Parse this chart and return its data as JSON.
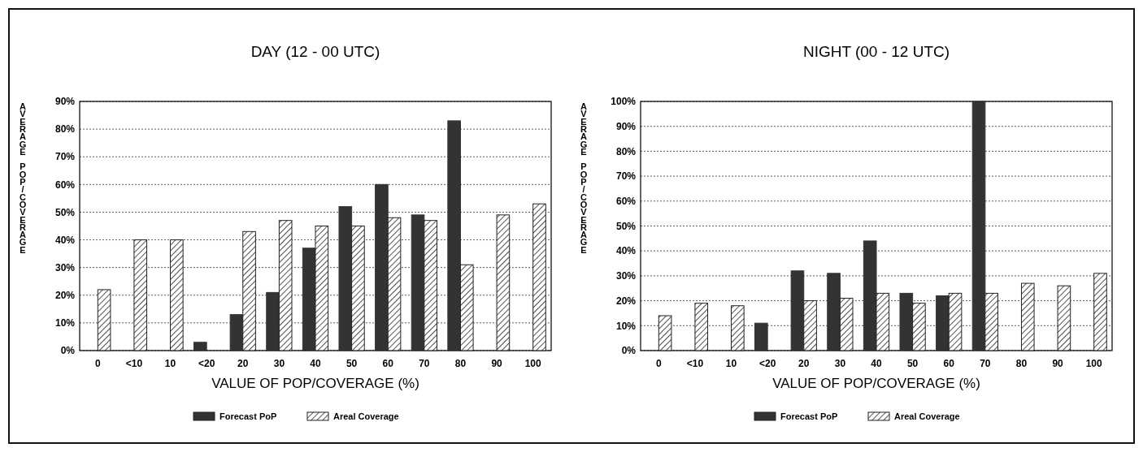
{
  "chart_data": [
    {
      "type": "bar",
      "title": "DAY (12 - 00 UTC)",
      "xlabel": "VALUE OF POP/COVERAGE (%)",
      "ylabel": "AVERAGE POP/COVERAGE",
      "categories": [
        "0",
        "<10",
        "10",
        "<20",
        "20",
        "30",
        "40",
        "50",
        "60",
        "70",
        "80",
        "90",
        "100"
      ],
      "series": [
        {
          "name": "Forecast PoP",
          "color": "#333333",
          "values": [
            null,
            null,
            null,
            3,
            13,
            21,
            37,
            52,
            60,
            49,
            83,
            null,
            null
          ]
        },
        {
          "name": "Areal Coverage",
          "color": "#222222",
          "values": [
            22,
            40,
            40,
            null,
            43,
            47,
            45,
            45,
            48,
            47,
            31,
            49,
            53
          ]
        }
      ],
      "ylim": [
        0,
        90
      ],
      "yticks": [
        {
          "value": 0,
          "label": "0%"
        },
        {
          "value": 10,
          "label": "10%"
        },
        {
          "value": 20,
          "label": "20%"
        },
        {
          "value": 30,
          "label": "30%"
        },
        {
          "value": 40,
          "label": "40%"
        },
        {
          "value": 50,
          "label": "50%"
        },
        {
          "value": 60,
          "label": "60%"
        },
        {
          "value": 70,
          "label": "70%"
        },
        {
          "value": 80,
          "label": "80%"
        },
        {
          "value": 90,
          "label": "90%"
        }
      ],
      "grid": "y",
      "legend": "bottom"
    },
    {
      "type": "bar",
      "title": "NIGHT (00 - 12 UTC)",
      "xlabel": "VALUE OF POP/COVERAGE (%)",
      "ylabel": "AVERAGE POP/COVERAGE",
      "categories": [
        "0",
        "<10",
        "10",
        "<20",
        "20",
        "30",
        "40",
        "50",
        "60",
        "70",
        "80",
        "90",
        "100"
      ],
      "series": [
        {
          "name": "Forecast PoP",
          "color": "#333333",
          "values": [
            null,
            null,
            null,
            11,
            32,
            31,
            44,
            23,
            22,
            100,
            null,
            null,
            null
          ]
        },
        {
          "name": "Areal Coverage",
          "color": "#222222",
          "values": [
            14,
            19,
            18,
            null,
            20,
            21,
            23,
            19,
            23,
            23,
            27,
            26,
            31
          ]
        }
      ],
      "ylim": [
        0,
        100
      ],
      "yticks": [
        {
          "value": 0,
          "label": "0%"
        },
        {
          "value": 10,
          "label": "10%"
        },
        {
          "value": 20,
          "label": "20%"
        },
        {
          "value": 30,
          "label": "30%"
        },
        {
          "value": 40,
          "label": "40%"
        },
        {
          "value": 50,
          "label": "50%"
        },
        {
          "value": 60,
          "label": "60%"
        },
        {
          "value": 70,
          "label": "70%"
        },
        {
          "value": 80,
          "label": "80%"
        },
        {
          "value": 90,
          "label": "90%"
        },
        {
          "value": 100,
          "label": "100%"
        }
      ],
      "grid": "y",
      "legend": "bottom"
    }
  ]
}
